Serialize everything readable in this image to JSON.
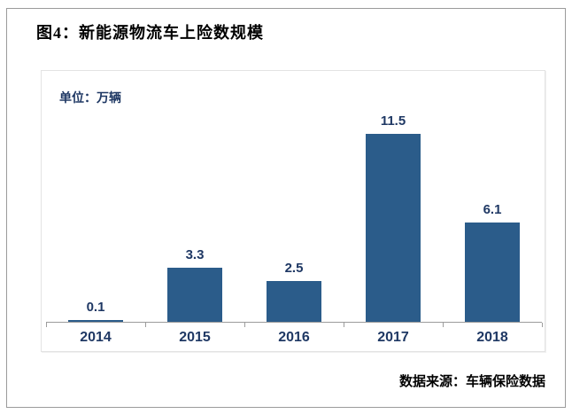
{
  "figure": {
    "title": "图4：新能源物流车上险数规模",
    "source": "数据来源：车辆保险数据"
  },
  "chart": {
    "unit_label": "单位：万辆"
  },
  "chart_data": {
    "type": "bar",
    "title": "新能源物流车上险数规模",
    "categories": [
      "2014",
      "2015",
      "2016",
      "2017",
      "2018"
    ],
    "values": [
      0.1,
      3.3,
      2.5,
      11.5,
      6.1
    ],
    "value_labels": [
      "0.1",
      "3.3",
      "2.5",
      "11.5",
      "6.1"
    ],
    "xlabel": "",
    "ylabel": "万辆",
    "ylim": [
      0,
      12
    ],
    "grid": false,
    "legend_position": "none",
    "colors": {
      "bar": "#2b5c8a",
      "data_label": "#1f3864",
      "axis_line": "#9c9c9c",
      "tick_label": "#1f3864"
    }
  }
}
